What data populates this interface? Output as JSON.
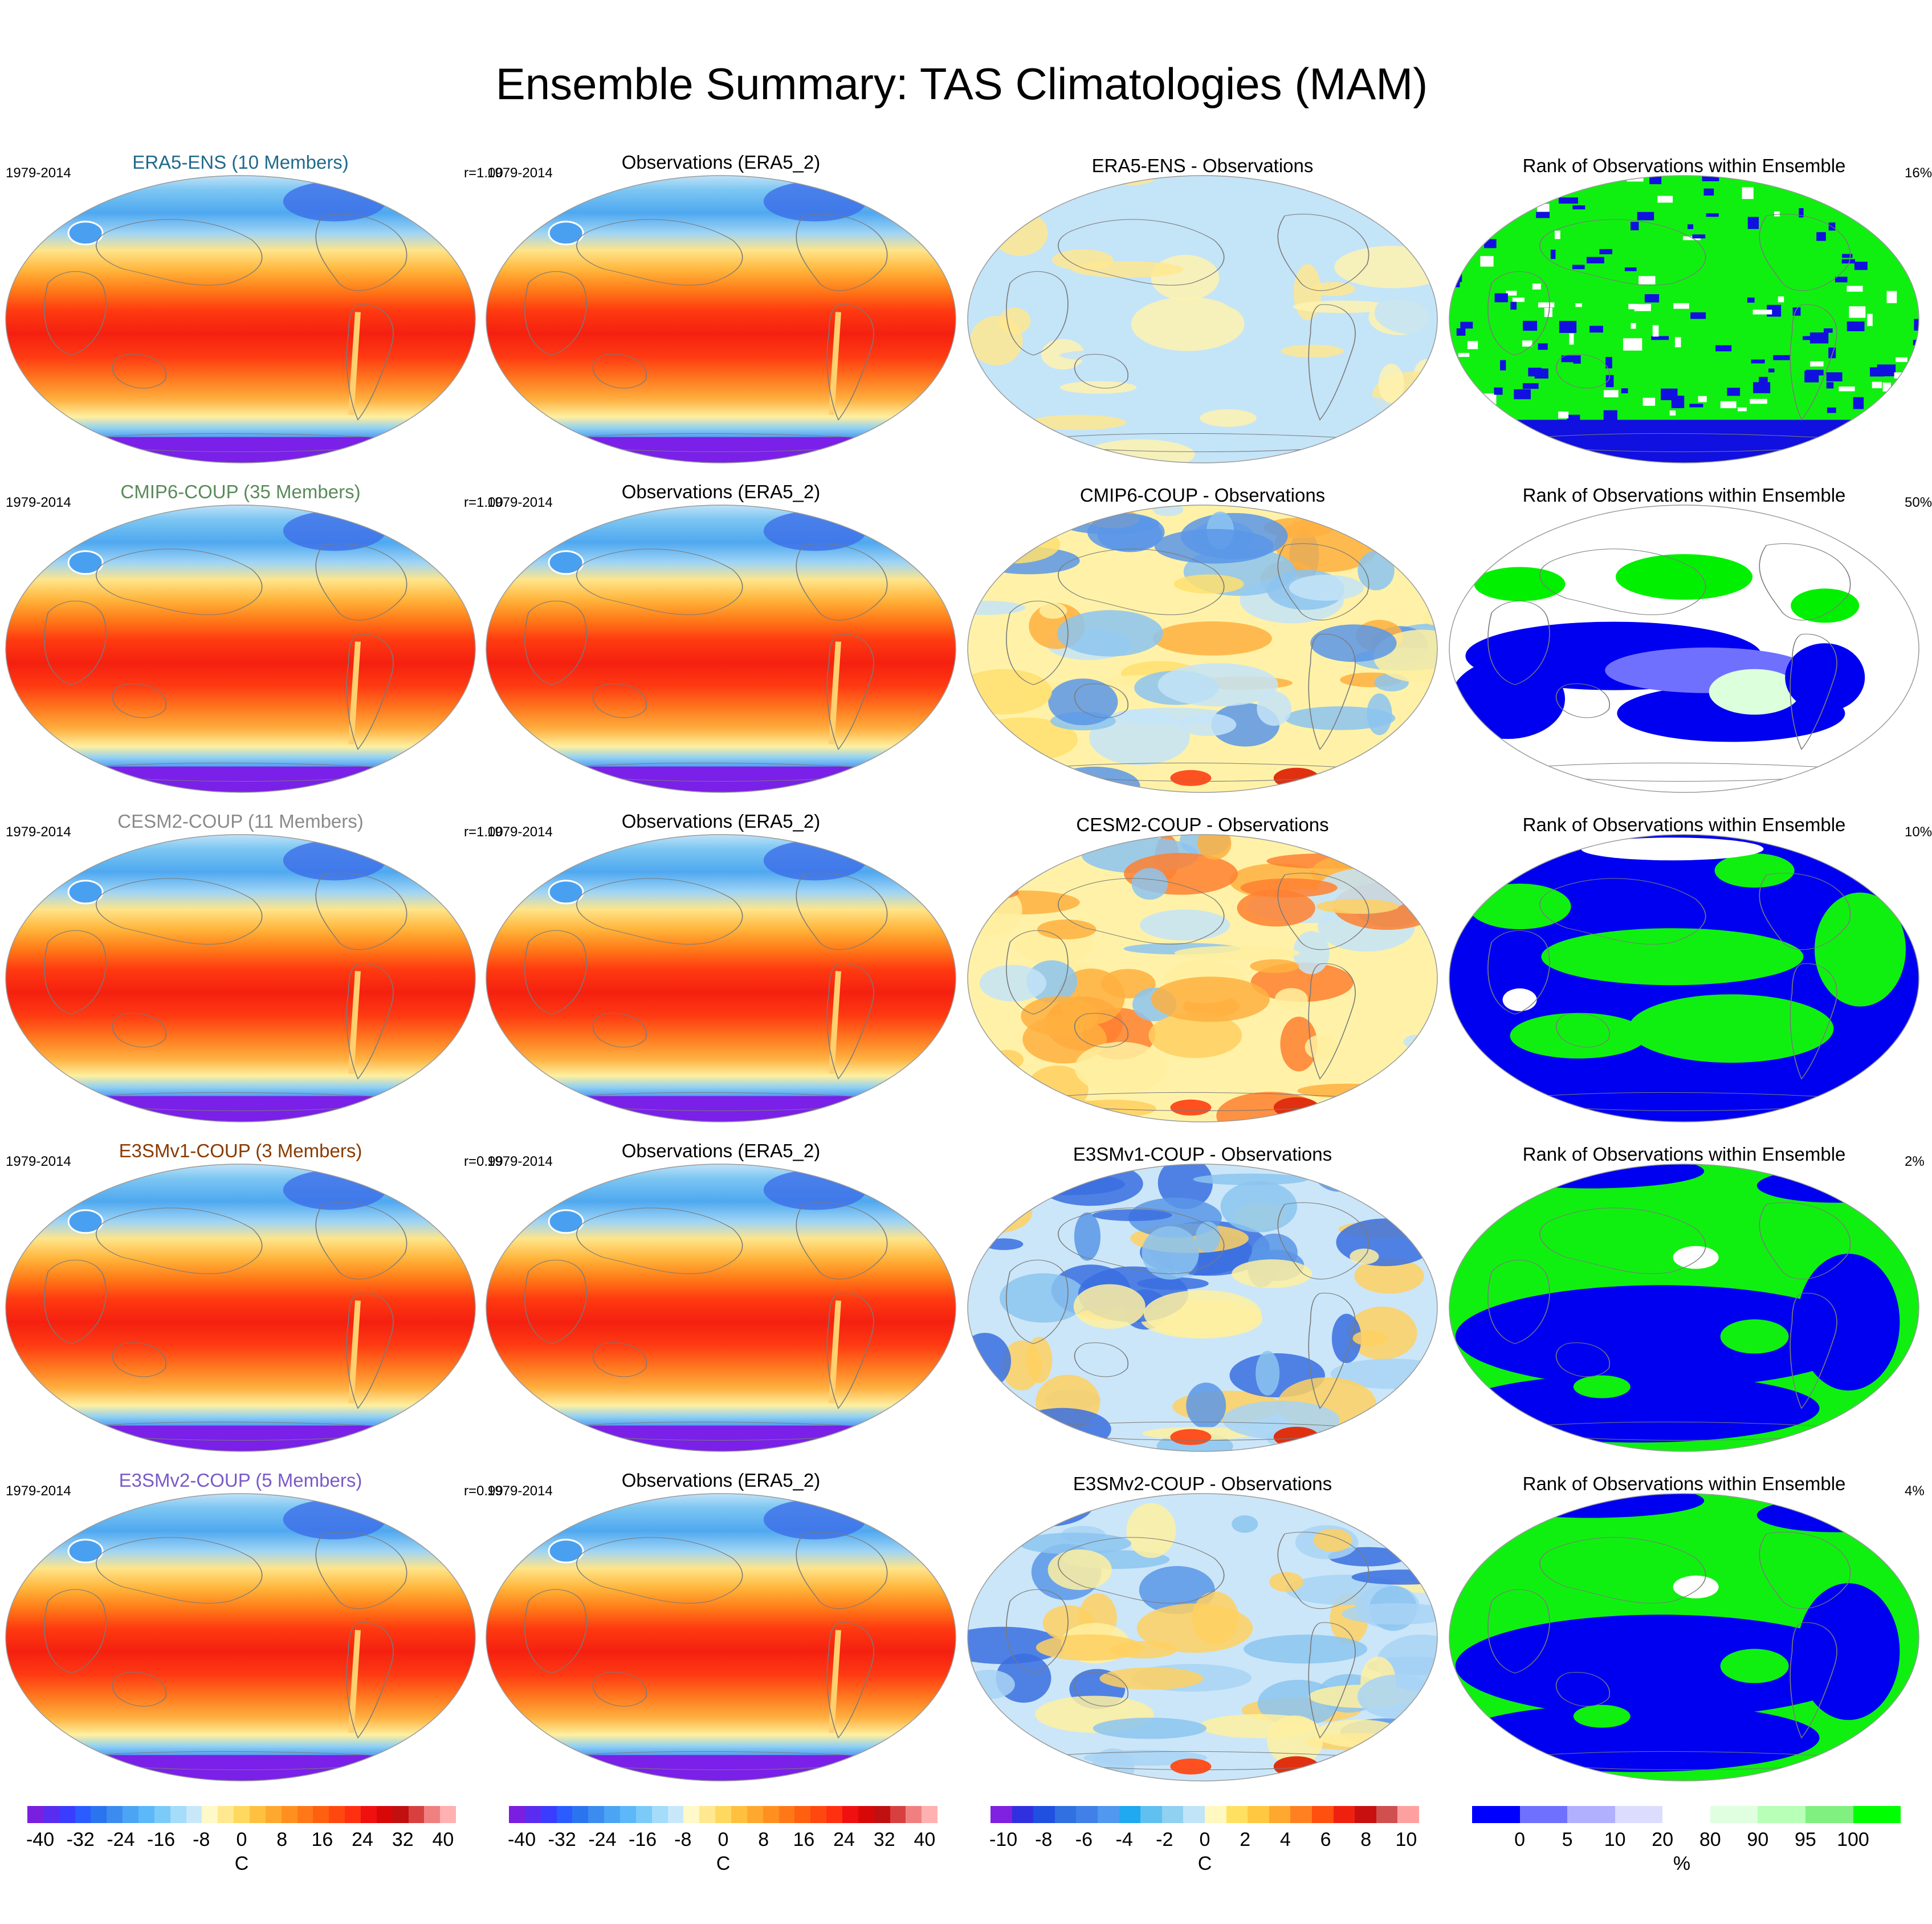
{
  "title": "Ensemble Summary: TAS Climatologies (MAM)",
  "colors": {
    "era5_ens": "#1f6a8c",
    "cmip6": "#5a8a5a",
    "cesm2": "#8a8a8a",
    "e3smv1": "#8a3a00",
    "e3smv2": "#7a5ac8"
  },
  "rows": [
    {
      "model_title": "ERA5-ENS (10 Members)",
      "model_color_key": "era5_ens",
      "period": "1979-2014",
      "corr": "r=1.00",
      "obs_title": "Observations (ERA5_2)",
      "obs_period": "1979-2014",
      "diff_title": "ERA5-ENS - Observations",
      "rank_title": "Rank of Observations within Ensemble",
      "rank_pct": "16%",
      "diff_style": "weak",
      "rank_style": "green-speckle"
    },
    {
      "model_title": "CMIP6-COUP (35 Members)",
      "model_color_key": "cmip6",
      "period": "1979-2014",
      "corr": "r=1.00",
      "obs_title": "Observations (ERA5_2)",
      "obs_period": "1979-2014",
      "diff_title": "CMIP6-COUP - Observations",
      "rank_title": "Rank of Observations within Ensemble",
      "rank_pct": "50%",
      "diff_style": "mixed",
      "rank_style": "mixed"
    },
    {
      "model_title": "CESM2-COUP (11 Members)",
      "model_color_key": "cesm2",
      "period": "1979-2014",
      "corr": "r=1.00",
      "obs_title": "Observations (ERA5_2)",
      "obs_period": "1979-2014",
      "diff_title": "CESM2-COUP - Observations",
      "rank_title": "Rank of Observations within Ensemble",
      "rank_pct": "10%",
      "diff_style": "warm",
      "rank_style": "blue-green"
    },
    {
      "model_title": "E3SMv1-COUP (3 Members)",
      "model_color_key": "e3smv1",
      "period": "1979-2014",
      "corr": "r=0.99",
      "obs_title": "Observations (ERA5_2)",
      "obs_period": "1979-2014",
      "diff_title": "E3SMv1-COUP - Observations",
      "rank_title": "Rank of Observations within Ensemble",
      "rank_pct": "2%",
      "diff_style": "cool",
      "rank_style": "green-blue"
    },
    {
      "model_title": "E3SMv2-COUP (5 Members)",
      "model_color_key": "e3smv2",
      "period": "1979-2014",
      "corr": "r=0.99",
      "obs_title": "Observations (ERA5_2)",
      "obs_period": "1979-2014",
      "diff_title": "E3SMv2-COUP - Observations",
      "rank_title": "Rank of Observations within Ensemble",
      "rank_pct": "4%",
      "diff_style": "cool",
      "rank_style": "green-blue"
    }
  ],
  "colorbars": [
    {
      "unit": "C",
      "ticks": [
        "-40",
        "-32",
        "-24",
        "-16",
        "-8",
        "0",
        "8",
        "16",
        "24",
        "32",
        "40"
      ],
      "colors": [
        "#7a1ee0",
        "#5a2cf0",
        "#3a3cff",
        "#2a5cff",
        "#2a74f0",
        "#3c8cf0",
        "#4ca4f5",
        "#5cb8f8",
        "#7ccaf8",
        "#a4dcfa",
        "#c8e8fa",
        "#fff8c8",
        "#ffe890",
        "#ffd860",
        "#ffc040",
        "#ffa830",
        "#ff9020",
        "#ff7818",
        "#ff6010",
        "#ff4810",
        "#ff3010",
        "#f01010",
        "#d80808",
        "#c01010",
        "#d84040",
        "#f08080",
        "#ffb0b0"
      ]
    },
    {
      "unit": "C",
      "ticks": [
        "-40",
        "-32",
        "-24",
        "-16",
        "-8",
        "0",
        "8",
        "16",
        "24",
        "32",
        "40"
      ],
      "colors": [
        "#7a1ee0",
        "#5a2cf0",
        "#3a3cff",
        "#2a5cff",
        "#2a74f0",
        "#3c8cf0",
        "#4ca4f5",
        "#5cb8f8",
        "#7ccaf8",
        "#a4dcfa",
        "#c8e8fa",
        "#fff8c8",
        "#ffe890",
        "#ffd860",
        "#ffc040",
        "#ffa830",
        "#ff9020",
        "#ff7818",
        "#ff6010",
        "#ff4810",
        "#ff3010",
        "#f01010",
        "#d80808",
        "#c01010",
        "#d84040",
        "#f08080",
        "#ffb0b0"
      ]
    },
    {
      "unit": "C",
      "ticks": [
        "-10",
        "-8",
        "-6",
        "-4",
        "-2",
        "0",
        "2",
        "4",
        "6",
        "8",
        "10"
      ],
      "colors": [
        "#8020e0",
        "#3030e0",
        "#2050e0",
        "#3070e0",
        "#4080e8",
        "#5098f0",
        "#20a8f0",
        "#60c0f0",
        "#90d0f0",
        "#c0e4f8",
        "#fff8c0",
        "#ffe060",
        "#ffc840",
        "#ffa830",
        "#ff8020",
        "#ff5010",
        "#f02010",
        "#c81010",
        "#d05050",
        "#ffa0a0"
      ]
    },
    {
      "unit": "%",
      "ticks": [
        "0",
        "5",
        "10",
        "20",
        "80",
        "90",
        "95",
        "100"
      ],
      "colors": [
        "#0000ff",
        "#7070ff",
        "#b0b0ff",
        "#dcdcff",
        "#ffffff",
        "#e0ffe0",
        "#b8ffb8",
        "#80f080",
        "#00ff00"
      ]
    }
  ]
}
